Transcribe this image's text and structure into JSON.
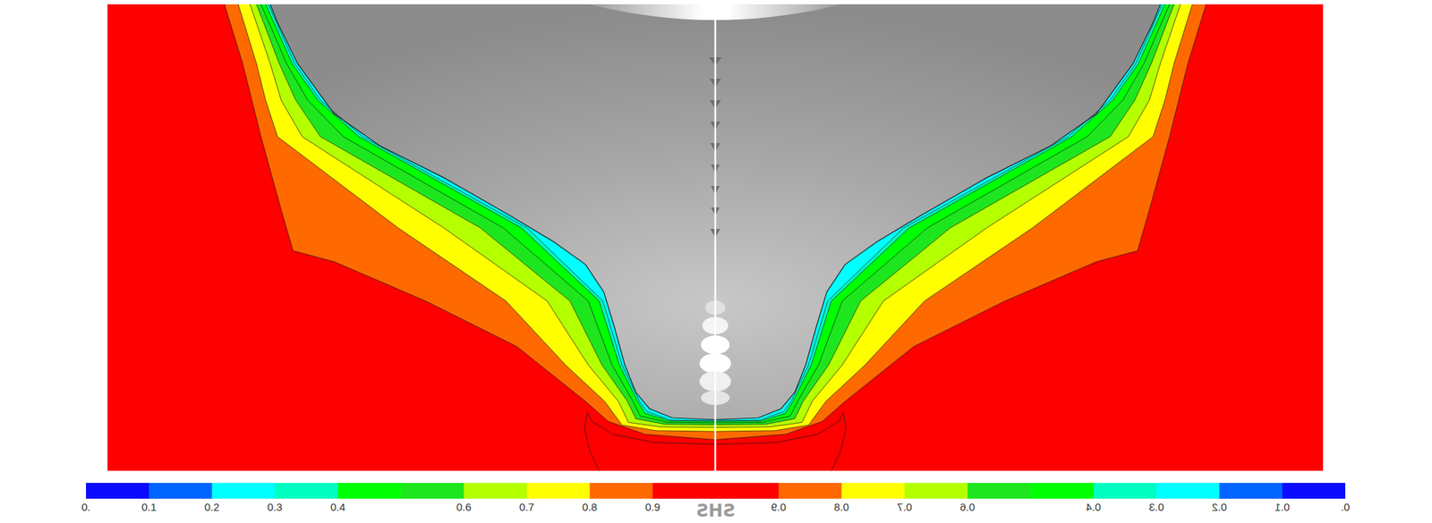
{
  "chart_data": {
    "type": "contour",
    "xlim": [
      -6.65,
      6.65
    ],
    "ylim": [
      0,
      5.11
    ],
    "tick_labels": false,
    "hull": {
      "x": [
        0,
        0.47,
        0.72,
        0.87,
        0.99,
        1.1,
        1.22,
        1.42,
        1.77,
        2.27,
        2.97,
        3.67,
        4.17,
        4.57,
        4.79,
        4.87
      ],
      "y": [
        0.56,
        0.58,
        0.68,
        0.86,
        1.16,
        1.56,
        1.96,
        2.26,
        2.51,
        2.81,
        3.21,
        3.56,
        3.91,
        4.46,
        4.91,
        5.11
      ]
    },
    "contours": [
      {
        "level": 0.3,
        "x": [
          0,
          0.49,
          0.75,
          0.83,
          1.02,
          1.23,
          2.06,
          3.86,
          4.32,
          4.6,
          4.89
        ],
        "y": [
          0.55,
          0.555,
          0.65,
          0.76,
          1.16,
          1.86,
          2.66,
          3.66,
          4.06,
          4.46,
          5.11
        ]
      },
      {
        "level": 0.4,
        "x": [
          0,
          0.5,
          0.77,
          0.85,
          1.05,
          1.27,
          2.12,
          3.9,
          4.35,
          4.63,
          4.92
        ],
        "y": [
          0.54,
          0.545,
          0.63,
          0.76,
          1.16,
          1.86,
          2.66,
          3.66,
          4.06,
          4.46,
          5.11
        ]
      },
      {
        "level": 0.5,
        "x": [
          0,
          0.52,
          0.82,
          0.9,
          1.13,
          1.39,
          2.32,
          4.07,
          4.46,
          4.69,
          4.97
        ],
        "y": [
          0.525,
          0.53,
          0.6,
          0.76,
          1.16,
          1.86,
          2.66,
          3.66,
          4.06,
          4.46,
          5.11
        ]
      },
      {
        "level": 0.6,
        "x": [
          0,
          0.55,
          0.87,
          0.96,
          1.24,
          1.59,
          2.57,
          4.32,
          4.59,
          4.77,
          5.02
        ],
        "y": [
          0.505,
          0.51,
          0.57,
          0.76,
          1.16,
          1.86,
          2.66,
          3.66,
          4.06,
          4.46,
          5.11
        ]
      },
      {
        "level": 0.7,
        "x": [
          0,
          0.59,
          0.95,
          1.06,
          1.39,
          1.84,
          2.97,
          4.52,
          4.75,
          4.87,
          5.09
        ],
        "y": [
          0.475,
          0.48,
          0.53,
          0.76,
          1.16,
          1.86,
          2.66,
          3.66,
          4.06,
          4.46,
          5.11
        ]
      },
      {
        "level": 0.8,
        "x": [
          0,
          0.65,
          1.02,
          1.21,
          1.64,
          2.29,
          3.47,
          4.79,
          4.92,
          5.02,
          5.22
        ],
        "y": [
          0.43,
          0.44,
          0.5,
          0.76,
          1.16,
          1.86,
          2.66,
          3.66,
          4.06,
          4.46,
          5.11
        ]
      },
      {
        "level": 0.9,
        "x": [
          0,
          0.77,
          1.17,
          1.42,
          2.17,
          3.17,
          4.17,
          4.62,
          4.75,
          4.97,
          5.17,
          5.37
        ],
        "y": [
          0.34,
          0.4,
          0.54,
          0.76,
          1.36,
          1.86,
          2.29,
          2.41,
          2.86,
          3.66,
          4.46,
          5.11
        ]
      },
      {
        "level": 0.95,
        "x": [
          0,
          0.67,
          1.12,
          1.35,
          1.4,
          1.43,
          1.37,
          1.27
        ],
        "y": [
          0.29,
          0.31,
          0.4,
          0.54,
          0.64,
          0.46,
          0.21,
          0
        ]
      }
    ],
    "colorbar": {
      "title": "SHS",
      "range": [
        0,
        1
      ],
      "ticks": [
        {
          "value": 0,
          "label": "0."
        },
        0.1,
        0.2,
        0.3,
        0.4,
        0.6,
        0.7,
        0.8,
        0.9
      ],
      "colors": [
        "#0a0aff",
        "#0064ff",
        "#00ffff",
        "#00ffc0",
        "#00ff00",
        "#1ee61e",
        "#b4ff00",
        "#ffff00",
        "#ff6a00",
        "#ff0000"
      ]
    }
  }
}
